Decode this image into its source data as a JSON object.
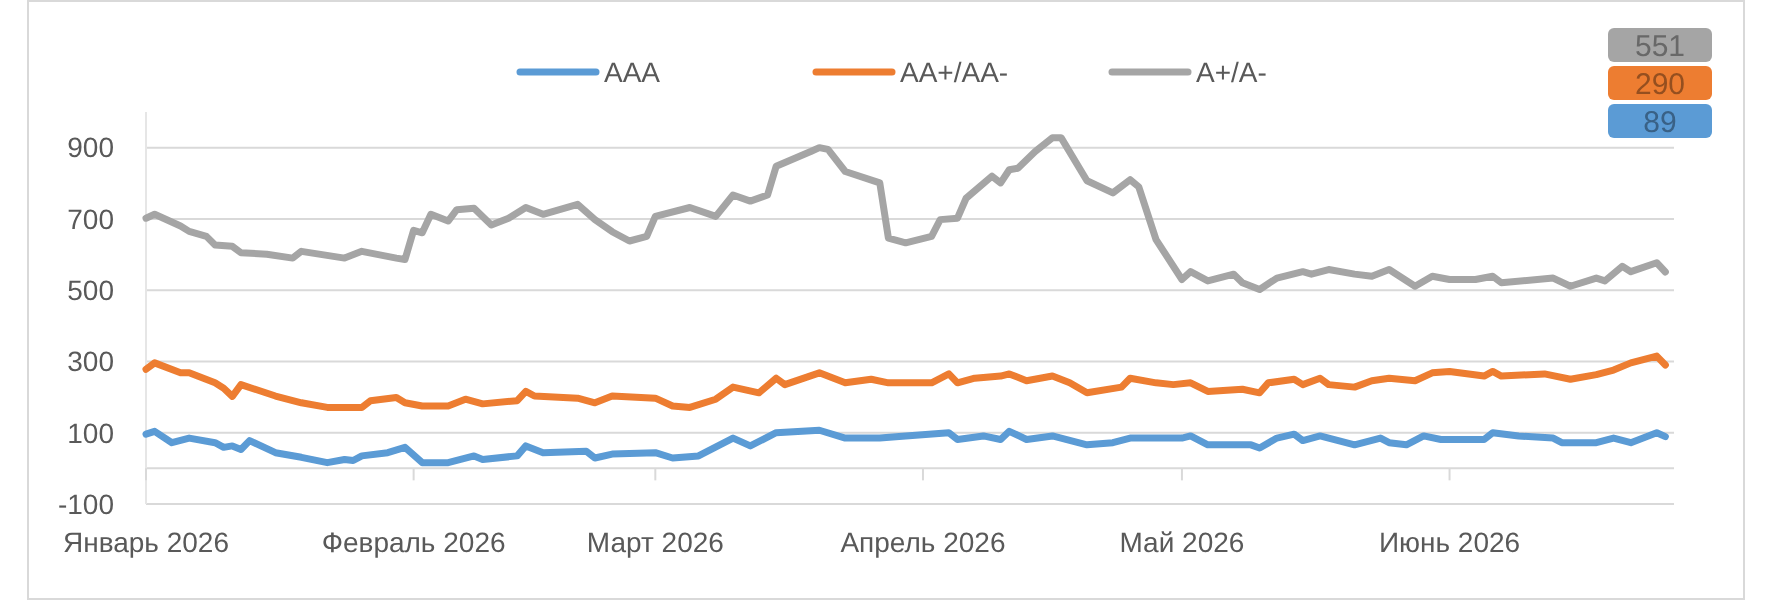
{
  "chart_data": {
    "type": "line",
    "legend": "top",
    "grid": "y",
    "line_style": "solid",
    "annotations": [
      "551",
      "290",
      "89"
    ],
    "xlim": [
      "2026-01-01",
      "2026-06-27"
    ],
    "xticks": [
      {
        "value": "2026-01-01",
        "label": "Январь 2026"
      },
      {
        "value": "2026-02-01",
        "label": "Февраль 2026"
      },
      {
        "value": "2026-03-01",
        "label": "Март 2026"
      },
      {
        "value": "2026-04-01",
        "label": "Апрель 2026"
      },
      {
        "value": "2026-05-01",
        "label": "Май 2026"
      },
      {
        "value": "2026-06-01",
        "label": "Июнь 2026"
      }
    ],
    "ylim": [
      -100,
      1000
    ],
    "yticks": [
      -100,
      100,
      300,
      500,
      700,
      900
    ],
    "series": [
      {
        "name": "AAA",
        "color": "#5b9bd5",
        "x": [
          "2026-01-01",
          "2026-01-02",
          "2026-01-04",
          "2026-01-06",
          "2026-01-09",
          "2026-01-10",
          "2026-01-11",
          "2026-01-12",
          "2026-01-13",
          "2026-01-16",
          "2026-01-19",
          "2026-01-22",
          "2026-01-24",
          "2026-01-25",
          "2026-01-26",
          "2026-01-29",
          "2026-01-31",
          "2026-02-02",
          "2026-02-05",
          "2026-02-08",
          "2026-02-09",
          "2026-02-13",
          "2026-02-14",
          "2026-02-16",
          "2026-02-21",
          "2026-02-22",
          "2026-02-24",
          "2026-03-01",
          "2026-03-03",
          "2026-03-06",
          "2026-03-10",
          "2026-03-12",
          "2026-03-15",
          "2026-03-20",
          "2026-03-23",
          "2026-03-27",
          "2026-03-30",
          "2026-04-04",
          "2026-04-05",
          "2026-04-08",
          "2026-04-10",
          "2026-04-11",
          "2026-04-13",
          "2026-04-16",
          "2026-04-20",
          "2026-04-23",
          "2026-04-25",
          "2026-04-28",
          "2026-05-01",
          "2026-05-02",
          "2026-05-04",
          "2026-05-09",
          "2026-05-10",
          "2026-05-12",
          "2026-05-14",
          "2026-05-15",
          "2026-05-17",
          "2026-05-21",
          "2026-05-24",
          "2026-05-25",
          "2026-05-27",
          "2026-05-29",
          "2026-05-31",
          "2026-06-05",
          "2026-06-06",
          "2026-06-09",
          "2026-06-13",
          "2026-06-14",
          "2026-06-18",
          "2026-06-20",
          "2026-06-22",
          "2026-06-25",
          "2026-06-26"
        ],
        "values": [
          96,
          104,
          72,
          85,
          72,
          59,
          63,
          53,
          78,
          44,
          31,
          16,
          25,
          22,
          35,
          44,
          59,
          16,
          16,
          35,
          25,
          35,
          63,
          44,
          48,
          29,
          40,
          44,
          29,
          35,
          85,
          63,
          100,
          107,
          85,
          85,
          91,
          100,
          81,
          91,
          81,
          104,
          81,
          91,
          66,
          72,
          85,
          85,
          85,
          91,
          66,
          66,
          57,
          85,
          96,
          78,
          91,
          66,
          85,
          72,
          66,
          91,
          81,
          81,
          100,
          91,
          85,
          72,
          72,
          85,
          72,
          100,
          89
        ]
      },
      {
        "name": "AA+/AA-",
        "color": "#ed7d31",
        "x": [
          "2026-01-01",
          "2026-01-02",
          "2026-01-05",
          "2026-01-06",
          "2026-01-09",
          "2026-01-10",
          "2026-01-11",
          "2026-01-12",
          "2026-01-16",
          "2026-01-19",
          "2026-01-22",
          "2026-01-26",
          "2026-01-27",
          "2026-01-30",
          "2026-01-31",
          "2026-02-02",
          "2026-02-05",
          "2026-02-07",
          "2026-02-09",
          "2026-02-13",
          "2026-02-14",
          "2026-02-15",
          "2026-02-20",
          "2026-02-22",
          "2026-02-24",
          "2026-03-01",
          "2026-03-03",
          "2026-03-05",
          "2026-03-08",
          "2026-03-10",
          "2026-03-13",
          "2026-03-15",
          "2026-03-16",
          "2026-03-20",
          "2026-03-23",
          "2026-03-26",
          "2026-03-28",
          "2026-04-02",
          "2026-04-04",
          "2026-04-05",
          "2026-04-07",
          "2026-04-10",
          "2026-04-11",
          "2026-04-13",
          "2026-04-16",
          "2026-04-18",
          "2026-04-20",
          "2026-04-24",
          "2026-04-25",
          "2026-04-28",
          "2026-04-30",
          "2026-05-02",
          "2026-05-04",
          "2026-05-08",
          "2026-05-10",
          "2026-05-11",
          "2026-05-14",
          "2026-05-15",
          "2026-05-17",
          "2026-05-18",
          "2026-05-21",
          "2026-05-23",
          "2026-05-25",
          "2026-05-28",
          "2026-05-30",
          "2026-06-01",
          "2026-06-05",
          "2026-06-06",
          "2026-06-07",
          "2026-06-12",
          "2026-06-15",
          "2026-06-18",
          "2026-06-20",
          "2026-06-22",
          "2026-06-25",
          "2026-06-26"
        ],
        "values": [
          278,
          296,
          268,
          268,
          240,
          225,
          202,
          235,
          203,
          184,
          171,
          171,
          190,
          199,
          184,
          175,
          175,
          194,
          181,
          190,
          216,
          203,
          197,
          184,
          203,
          197,
          175,
          171,
          194,
          228,
          212,
          253,
          235,
          268,
          240,
          250,
          240,
          240,
          265,
          240,
          253,
          259,
          265,
          246,
          259,
          240,
          212,
          228,
          253,
          240,
          235,
          240,
          216,
          222,
          212,
          240,
          250,
          235,
          253,
          235,
          228,
          246,
          253,
          246,
          268,
          272,
          259,
          272,
          259,
          265,
          250,
          263,
          276,
          296,
          315,
          290
        ]
      },
      {
        "name": "A+/A-",
        "color": "#a5a5a5",
        "x": [
          "2026-01-01",
          "2026-01-02",
          "2026-01-05",
          "2026-01-06",
          "2026-01-08",
          "2026-01-09",
          "2026-01-11",
          "2026-01-12",
          "2026-01-15",
          "2026-01-18",
          "2026-01-19",
          "2026-01-24",
          "2026-01-26",
          "2026-01-30",
          "2026-01-31",
          "2026-02-01",
          "2026-02-02",
          "2026-02-03",
          "2026-02-05",
          "2026-02-06",
          "2026-02-08",
          "2026-02-10",
          "2026-02-12",
          "2026-02-14",
          "2026-02-16",
          "2026-02-20",
          "2026-02-22",
          "2026-02-24",
          "2026-02-26",
          "2026-02-28",
          "2026-03-01",
          "2026-03-05",
          "2026-03-08",
          "2026-03-10",
          "2026-03-12",
          "2026-03-14",
          "2026-03-15",
          "2026-03-19",
          "2026-03-20",
          "2026-03-21",
          "2026-03-23",
          "2026-03-27",
          "2026-03-28",
          "2026-03-30",
          "2026-04-02",
          "2026-04-03",
          "2026-04-05",
          "2026-04-06",
          "2026-04-09",
          "2026-04-10",
          "2026-04-11",
          "2026-04-12",
          "2026-04-14",
          "2026-04-16",
          "2026-04-17",
          "2026-04-20",
          "2026-04-23",
          "2026-04-25",
          "2026-04-26",
          "2026-04-28",
          "2026-05-01",
          "2026-05-02",
          "2026-05-04",
          "2026-05-07",
          "2026-05-08",
          "2026-05-10",
          "2026-05-12",
          "2026-05-15",
          "2026-05-16",
          "2026-05-18",
          "2026-05-21",
          "2026-05-23",
          "2026-05-25",
          "2026-05-28",
          "2026-05-30",
          "2026-06-01",
          "2026-06-04",
          "2026-06-06",
          "2026-06-07",
          "2026-06-13",
          "2026-06-15",
          "2026-06-18",
          "2026-06-19",
          "2026-06-21",
          "2026-06-22",
          "2026-06-25",
          "2026-06-26"
        ],
        "values": [
          702,
          713,
          680,
          665,
          651,
          627,
          623,
          605,
          601,
          590,
          609,
          590,
          609,
          590,
          586,
          668,
          661,
          713,
          694,
          726,
          730,
          683,
          702,
          732,
          713,
          741,
          698,
          664,
          638,
          651,
          707,
          732,
          707,
          767,
          750,
          767,
          848,
          889,
          900,
          895,
          833,
          801,
          646,
          633,
          651,
          698,
          702,
          758,
          820,
          801,
          838,
          842,
          889,
          928,
          928,
          807,
          773,
          810,
          790,
          642,
          530,
          552,
          526,
          545,
          521,
          502,
          534,
          552,
          545,
          558,
          545,
          539,
          558,
          511,
          539,
          530,
          530,
          539,
          521,
          534,
          511,
          534,
          526,
          567,
          552,
          577,
          551
        ]
      }
    ]
  }
}
